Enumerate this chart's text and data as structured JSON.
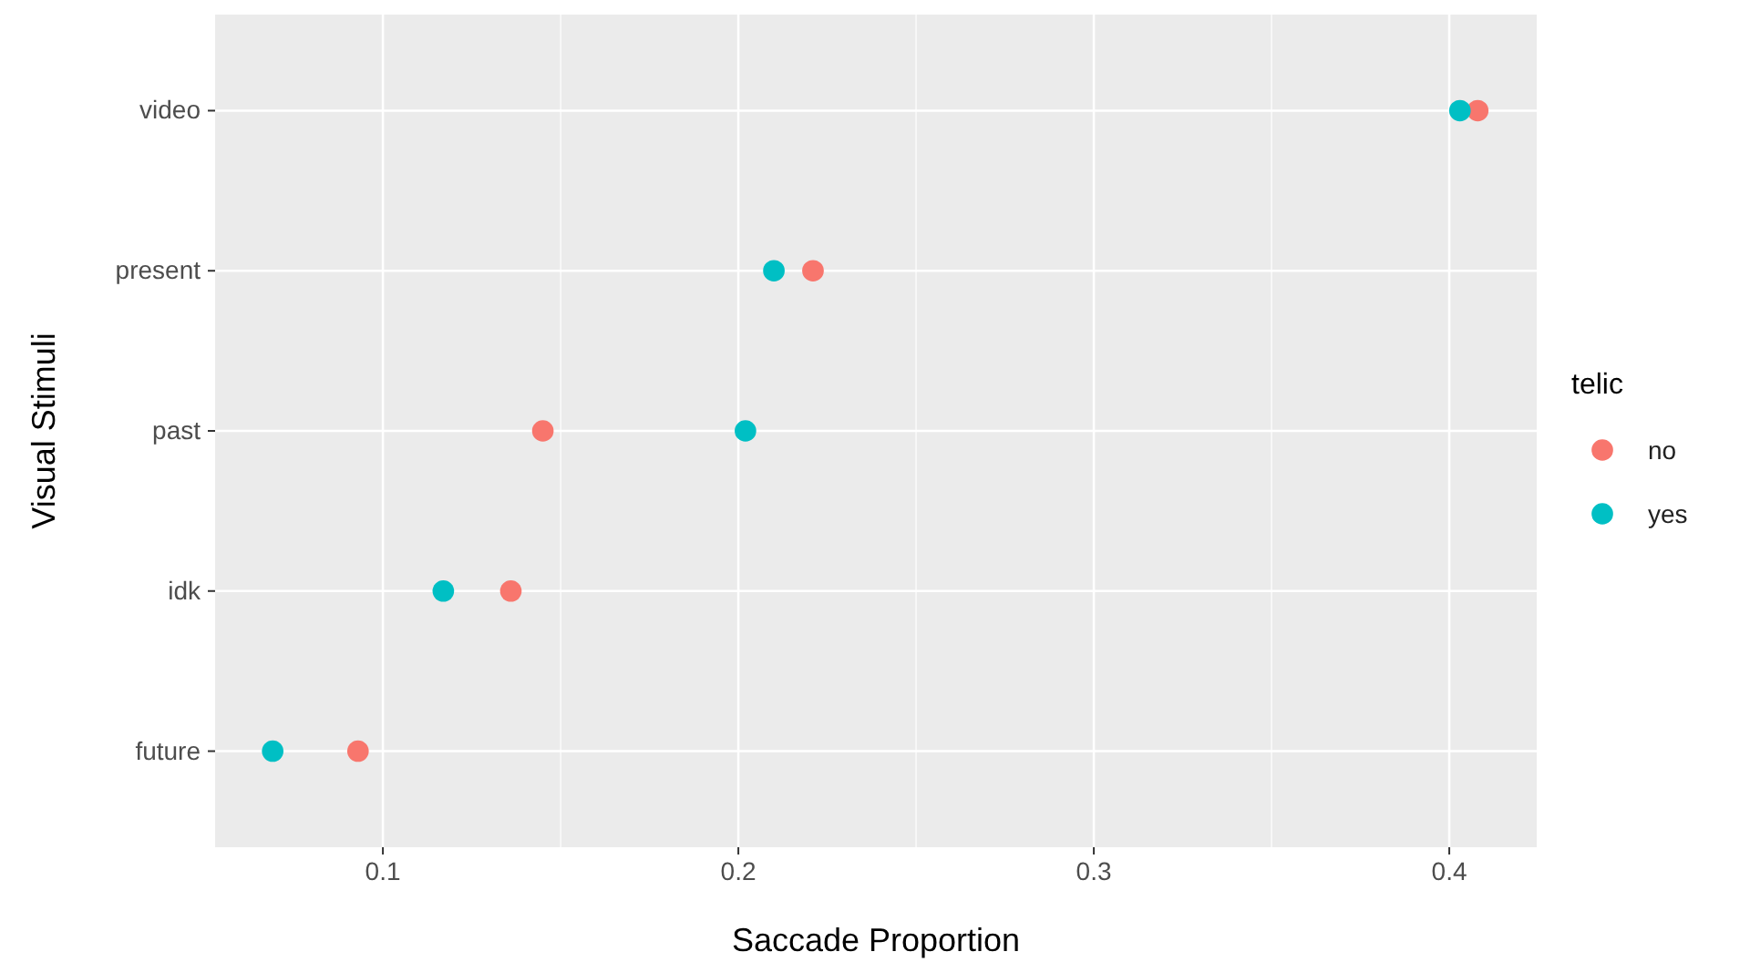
{
  "chart_data": {
    "type": "scatter",
    "orientation": "horizontal",
    "xlabel": "Saccade Proportion",
    "ylabel": "Visual Stimuli",
    "legend_title": "telic",
    "categories": [
      "video",
      "present",
      "past",
      "idk",
      "future"
    ],
    "series": [
      {
        "name": "no",
        "color": "#f8766d",
        "values": [
          0.408,
          0.221,
          0.145,
          0.136,
          0.093
        ]
      },
      {
        "name": "yes",
        "color": "#00bfc4",
        "values": [
          0.403,
          0.21,
          0.202,
          0.117,
          0.069
        ]
      }
    ],
    "xlim": [
      0.0528,
      0.4246
    ],
    "xticks": [
      0.1,
      0.2,
      0.3,
      0.4
    ],
    "grid": true,
    "legend": "right",
    "marker": "circle"
  }
}
